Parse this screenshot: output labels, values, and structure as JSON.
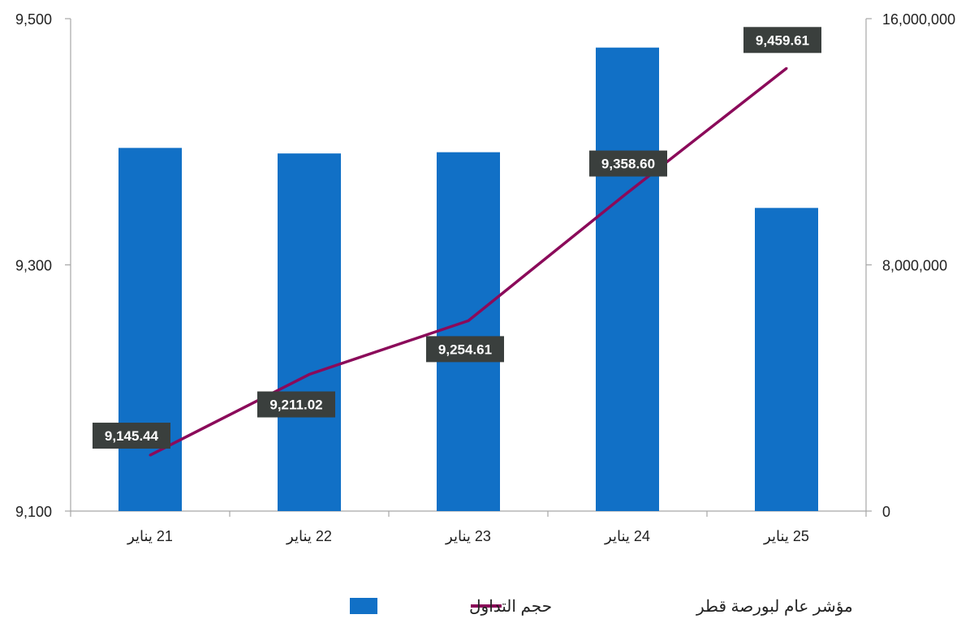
{
  "chart_data": {
    "type": "bar+line",
    "categories": [
      "21 يناير",
      "22 يناير",
      "23 يناير",
      "24 يناير",
      "25 يناير"
    ],
    "series": [
      {
        "name": "حجم التداول",
        "type": "bar",
        "axis": "right",
        "color": "#1170C6",
        "values": [
          11800000,
          11620000,
          11660000,
          15060000,
          9850000
        ]
      },
      {
        "name": "مؤشر عام لبورصة قطر",
        "type": "line",
        "axis": "left",
        "color": "#8B0A5A",
        "values": [
          9145.44,
          9211.02,
          9254.61,
          9358.6,
          9459.61
        ],
        "labels": [
          "9,145.44",
          "9,211.02",
          "9,254.61",
          "9,358.60",
          "9,459.61"
        ]
      }
    ],
    "y_left": {
      "min": 9100,
      "max": 9500,
      "ticks": [
        9100,
        9300,
        9500
      ],
      "tick_labels": [
        "9,100",
        "9,300",
        "9,500"
      ]
    },
    "y_right": {
      "min": 0,
      "max": 16000000,
      "ticks": [
        0,
        8000000,
        16000000
      ],
      "tick_labels": [
        "0",
        "8,000,000",
        "16,000,000"
      ]
    },
    "legend_position": "bottom",
    "label_box_color": "#3A3F3D",
    "axis_color": "#A6A6A6",
    "grid": false
  }
}
